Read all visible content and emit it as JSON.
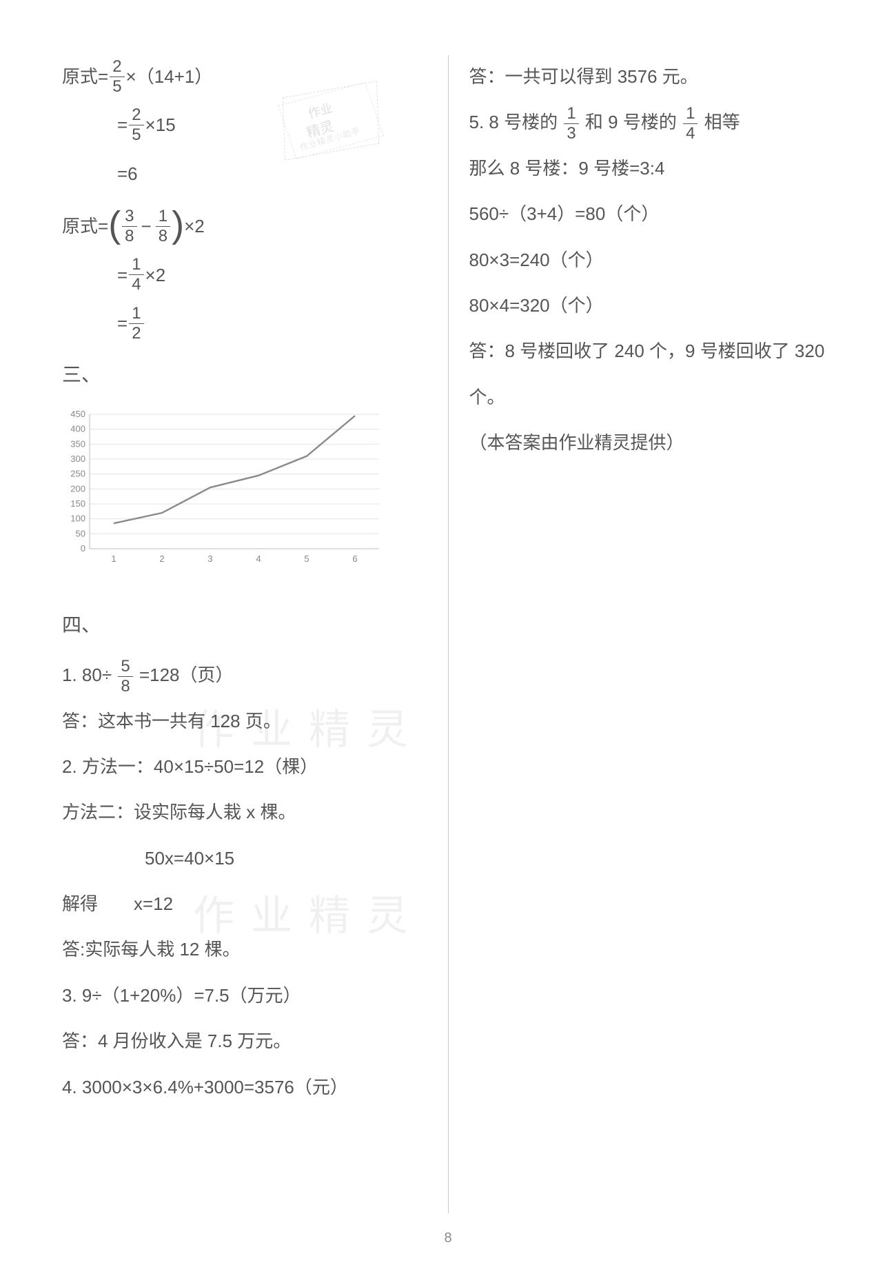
{
  "page_number": "8",
  "stamp": {
    "line1": "作业",
    "line2": "精灵",
    "line3": "作业精灵小助手"
  },
  "watermark": "作业精灵",
  "left": {
    "eq1": {
      "prefix": "原式=",
      "r1_after": "×（14+1）",
      "r1_frac": {
        "n": "2",
        "d": "5"
      },
      "r2_eq": "=",
      "r2_frac": {
        "n": "2",
        "d": "5"
      },
      "r2_after": "×15",
      "r3": "=6"
    },
    "eq2": {
      "prefix": "原式=",
      "lp": "(",
      "rp": ")",
      "fracA": {
        "n": "3",
        "d": "8"
      },
      "minus": "−",
      "fracB": {
        "n": "1",
        "d": "8"
      },
      "after1": "×2",
      "r2_eq": "=",
      "r2_frac": {
        "n": "1",
        "d": "4"
      },
      "r2_after": "×2",
      "r3_eq": "=",
      "r3_frac": {
        "n": "1",
        "d": "2"
      }
    },
    "sec3": "三、",
    "chart": {
      "type": "line",
      "x": [
        1,
        2,
        3,
        4,
        5,
        6
      ],
      "y": [
        85,
        120,
        205,
        245,
        310,
        445
      ],
      "xlim": [
        0.5,
        6.5
      ],
      "ylim": [
        0,
        450
      ],
      "ytick_step": 50,
      "yticks": [
        "0",
        "50",
        "100",
        "150",
        "200",
        "250",
        "300",
        "350",
        "400",
        "450"
      ],
      "xticks": [
        "1",
        "2",
        "3",
        "4",
        "5",
        "6"
      ],
      "line_color": "#8a8a8a",
      "grid_color": "#e3e3e3",
      "axis_color": "#bdbdbd",
      "tick_font": 13,
      "line_width": 2.4,
      "background_color": "#ffffff"
    },
    "sec4": "四、",
    "q1_pre": "1. 80÷",
    "q1_frac": {
      "n": "5",
      "d": "8"
    },
    "q1_post": "=128（页）",
    "q1_ans": "答：这本书一共有 128 页。",
    "q2a": "2. 方法一：40×15÷50=12（棵）",
    "q2b": "方法二：设实际每人栽 x 棵。",
    "q2c": "50x=40×15",
    "q2d": "解得　　x=12",
    "q2e": "答:实际每人栽 12 棵。",
    "q3a": "3. 9÷（1+20%）=7.5（万元）",
    "q3b": "答：4 月份收入是 7.5 万元。",
    "q4a": "4. 3000×3×6.4%+3000=3576（元）"
  },
  "right": {
    "r1": "答：一共可以得到 3576 元。",
    "r2_pre": "5. 8 号楼的",
    "r2_f1": {
      "n": "1",
      "d": "3"
    },
    "r2_mid": "和 9 号楼的",
    "r2_f2": {
      "n": "1",
      "d": "4"
    },
    "r2_post": "相等",
    "r3": "那么 8 号楼：9 号楼=3:4",
    "r4": "560÷（3+4）=80（个）",
    "r5": "80×3=240（个）",
    "r6": "80×4=320（个）",
    "r7": "答：8 号楼回收了 240 个，9 号楼回收了 320",
    "r8": "个。",
    "r9": "（本答案由作业精灵提供）"
  }
}
